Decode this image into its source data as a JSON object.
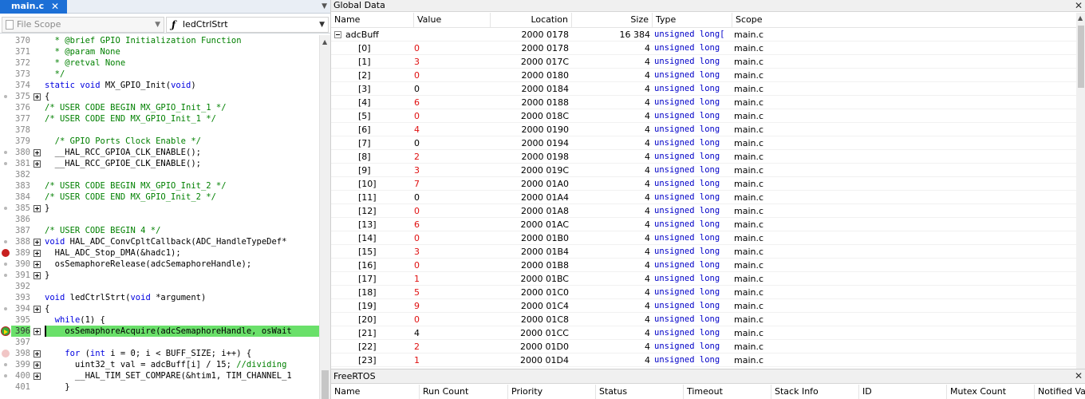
{
  "editor": {
    "tab_label": "main.c",
    "tab_close": "✕",
    "scope_left": "File Scope",
    "scope_right": "ledCtrlStrt",
    "lines": [
      {
        "n": "370",
        "t": "  * @brief GPIO Initialization Function",
        "cls": "com",
        "mk": "",
        "fold": false
      },
      {
        "n": "371",
        "t": "  * @param None",
        "cls": "com",
        "mk": "",
        "fold": false
      },
      {
        "n": "372",
        "t": "  * @retval None",
        "cls": "com",
        "mk": "",
        "fold": false
      },
      {
        "n": "373",
        "t": "  */",
        "cls": "com",
        "mk": "",
        "fold": false
      },
      {
        "n": "374",
        "t": "static void MX_GPIO_Init(void)",
        "cls": "mixed374",
        "mk": "",
        "fold": false
      },
      {
        "n": "375",
        "t": "{",
        "cls": "plain",
        "mk": "dot",
        "fold": true
      },
      {
        "n": "376",
        "t": "/* USER CODE BEGIN MX_GPIO_Init_1 */",
        "cls": "com",
        "mk": "",
        "fold": false
      },
      {
        "n": "377",
        "t": "/* USER CODE END MX_GPIO_Init_1 */",
        "cls": "com",
        "mk": "",
        "fold": false
      },
      {
        "n": "378",
        "t": "",
        "cls": "plain",
        "mk": "",
        "fold": false
      },
      {
        "n": "379",
        "t": "  /* GPIO Ports Clock Enable */",
        "cls": "com",
        "mk": "",
        "fold": false
      },
      {
        "n": "380",
        "t": "  __HAL_RCC_GPIOA_CLK_ENABLE();",
        "cls": "plain",
        "mk": "dot",
        "fold": true
      },
      {
        "n": "381",
        "t": "  __HAL_RCC_GPIOE_CLK_ENABLE();",
        "cls": "plain",
        "mk": "dot",
        "fold": true
      },
      {
        "n": "382",
        "t": "",
        "cls": "plain",
        "mk": "",
        "fold": false
      },
      {
        "n": "383",
        "t": "/* USER CODE BEGIN MX_GPIO_Init_2 */",
        "cls": "com",
        "mk": "",
        "fold": false
      },
      {
        "n": "384",
        "t": "/* USER CODE END MX_GPIO_Init_2 */",
        "cls": "com",
        "mk": "",
        "fold": false
      },
      {
        "n": "385",
        "t": "}",
        "cls": "plain",
        "mk": "dot",
        "fold": true
      },
      {
        "n": "386",
        "t": "",
        "cls": "plain",
        "mk": "",
        "fold": false
      },
      {
        "n": "387",
        "t": "/* USER CODE BEGIN 4 */",
        "cls": "com",
        "mk": "",
        "fold": false
      },
      {
        "n": "388",
        "t": "void HAL_ADC_ConvCpltCallback(ADC_HandleTypeDef*",
        "cls": "mixed388",
        "mk": "dot",
        "fold": true
      },
      {
        "n": "389",
        "t": "  HAL_ADC_Stop_DMA(&hadc1);",
        "cls": "plain",
        "mk": "bp",
        "fold": true
      },
      {
        "n": "390",
        "t": "  osSemaphoreRelease(adcSemaphoreHandle);",
        "cls": "plain",
        "mk": "dot",
        "fold": true
      },
      {
        "n": "391",
        "t": "}",
        "cls": "plain",
        "mk": "dot",
        "fold": true
      },
      {
        "n": "392",
        "t": "",
        "cls": "plain",
        "mk": "",
        "fold": false
      },
      {
        "n": "393",
        "t": "void ledCtrlStrt(void *argument)",
        "cls": "mixed393",
        "mk": "",
        "fold": false
      },
      {
        "n": "394",
        "t": "{",
        "cls": "plain",
        "mk": "dot",
        "fold": true
      },
      {
        "n": "395",
        "t": "  while(1) {",
        "cls": "mixed395",
        "mk": "",
        "fold": false
      },
      {
        "n": "396",
        "t": "    osSemaphoreAcquire(adcSemaphoreHandle, osWait",
        "cls": "plain",
        "mk": "cur",
        "fold": true,
        "hl": true
      },
      {
        "n": "397",
        "t": "",
        "cls": "plain",
        "mk": "",
        "fold": false
      },
      {
        "n": "398",
        "t": "    for (int i = 0; i < BUFF_SIZE; i++) {",
        "cls": "mixed398",
        "mk": "bpf",
        "fold": true
      },
      {
        "n": "399",
        "t": "      uint32_t val = adcBuff[i] / 15; //dividing",
        "cls": "mixed399",
        "mk": "dot",
        "fold": true
      },
      {
        "n": "400",
        "t": "      __HAL_TIM_SET_COMPARE(&htim1, TIM_CHANNEL_1",
        "cls": "plain",
        "mk": "dot",
        "fold": true
      },
      {
        "n": "401",
        "t": "    }",
        "cls": "plain",
        "mk": "",
        "fold": false
      }
    ]
  },
  "global_data": {
    "title": "Global Data",
    "close": "✕",
    "columns": [
      "Name",
      "Value",
      "Location",
      "Size",
      "Type",
      "Scope"
    ],
    "parent": {
      "name": "adcBuff",
      "value": "",
      "location": "2000 0178",
      "size": "16 384",
      "type": "unsigned long[",
      "scope": "main.c"
    },
    "rows": [
      {
        "name": "[0]",
        "value": "0",
        "location": "2000 0178",
        "size": "4",
        "type": "unsigned long",
        "scope": "main.c",
        "red": true
      },
      {
        "name": "[1]",
        "value": "3",
        "location": "2000 017C",
        "size": "4",
        "type": "unsigned long",
        "scope": "main.c",
        "red": true
      },
      {
        "name": "[2]",
        "value": "0",
        "location": "2000 0180",
        "size": "4",
        "type": "unsigned long",
        "scope": "main.c",
        "red": true
      },
      {
        "name": "[3]",
        "value": "0",
        "location": "2000 0184",
        "size": "4",
        "type": "unsigned long",
        "scope": "main.c",
        "red": false
      },
      {
        "name": "[4]",
        "value": "6",
        "location": "2000 0188",
        "size": "4",
        "type": "unsigned long",
        "scope": "main.c",
        "red": true
      },
      {
        "name": "[5]",
        "value": "0",
        "location": "2000 018C",
        "size": "4",
        "type": "unsigned long",
        "scope": "main.c",
        "red": true
      },
      {
        "name": "[6]",
        "value": "4",
        "location": "2000 0190",
        "size": "4",
        "type": "unsigned long",
        "scope": "main.c",
        "red": true
      },
      {
        "name": "[7]",
        "value": "0",
        "location": "2000 0194",
        "size": "4",
        "type": "unsigned long",
        "scope": "main.c",
        "red": false
      },
      {
        "name": "[8]",
        "value": "2",
        "location": "2000 0198",
        "size": "4",
        "type": "unsigned long",
        "scope": "main.c",
        "red": true
      },
      {
        "name": "[9]",
        "value": "3",
        "location": "2000 019C",
        "size": "4",
        "type": "unsigned long",
        "scope": "main.c",
        "red": true
      },
      {
        "name": "[10]",
        "value": "7",
        "location": "2000 01A0",
        "size": "4",
        "type": "unsigned long",
        "scope": "main.c",
        "red": true
      },
      {
        "name": "[11]",
        "value": "0",
        "location": "2000 01A4",
        "size": "4",
        "type": "unsigned long",
        "scope": "main.c",
        "red": false
      },
      {
        "name": "[12]",
        "value": "0",
        "location": "2000 01A8",
        "size": "4",
        "type": "unsigned long",
        "scope": "main.c",
        "red": true
      },
      {
        "name": "[13]",
        "value": "6",
        "location": "2000 01AC",
        "size": "4",
        "type": "unsigned long",
        "scope": "main.c",
        "red": true
      },
      {
        "name": "[14]",
        "value": "0",
        "location": "2000 01B0",
        "size": "4",
        "type": "unsigned long",
        "scope": "main.c",
        "red": true
      },
      {
        "name": "[15]",
        "value": "3",
        "location": "2000 01B4",
        "size": "4",
        "type": "unsigned long",
        "scope": "main.c",
        "red": true
      },
      {
        "name": "[16]",
        "value": "0",
        "location": "2000 01B8",
        "size": "4",
        "type": "unsigned long",
        "scope": "main.c",
        "red": true
      },
      {
        "name": "[17]",
        "value": "1",
        "location": "2000 01BC",
        "size": "4",
        "type": "unsigned long",
        "scope": "main.c",
        "red": true
      },
      {
        "name": "[18]",
        "value": "5",
        "location": "2000 01C0",
        "size": "4",
        "type": "unsigned long",
        "scope": "main.c",
        "red": true
      },
      {
        "name": "[19]",
        "value": "9",
        "location": "2000 01C4",
        "size": "4",
        "type": "unsigned long",
        "scope": "main.c",
        "red": true
      },
      {
        "name": "[20]",
        "value": "0",
        "location": "2000 01C8",
        "size": "4",
        "type": "unsigned long",
        "scope": "main.c",
        "red": true
      },
      {
        "name": "[21]",
        "value": "4",
        "location": "2000 01CC",
        "size": "4",
        "type": "unsigned long",
        "scope": "main.c",
        "red": false
      },
      {
        "name": "[22]",
        "value": "2",
        "location": "2000 01D0",
        "size": "4",
        "type": "unsigned long",
        "scope": "main.c",
        "red": true
      },
      {
        "name": "[23]",
        "value": "1",
        "location": "2000 01D4",
        "size": "4",
        "type": "unsigned long",
        "scope": "main.c",
        "red": true
      }
    ]
  },
  "freertos": {
    "title": "FreeRTOS",
    "close": "✕",
    "columns": [
      "Name",
      "Run Count",
      "Priority",
      "Status",
      "Timeout",
      "Stack Info",
      "ID",
      "Mutex Count",
      "Notified Va"
    ]
  },
  "colors": {
    "tab_active": "#1c6fd6",
    "current_line": "#6ae06a",
    "comment": "#008000",
    "keyword": "#0000e0",
    "changed_value": "#e01010",
    "type_text": "#0000c8"
  }
}
